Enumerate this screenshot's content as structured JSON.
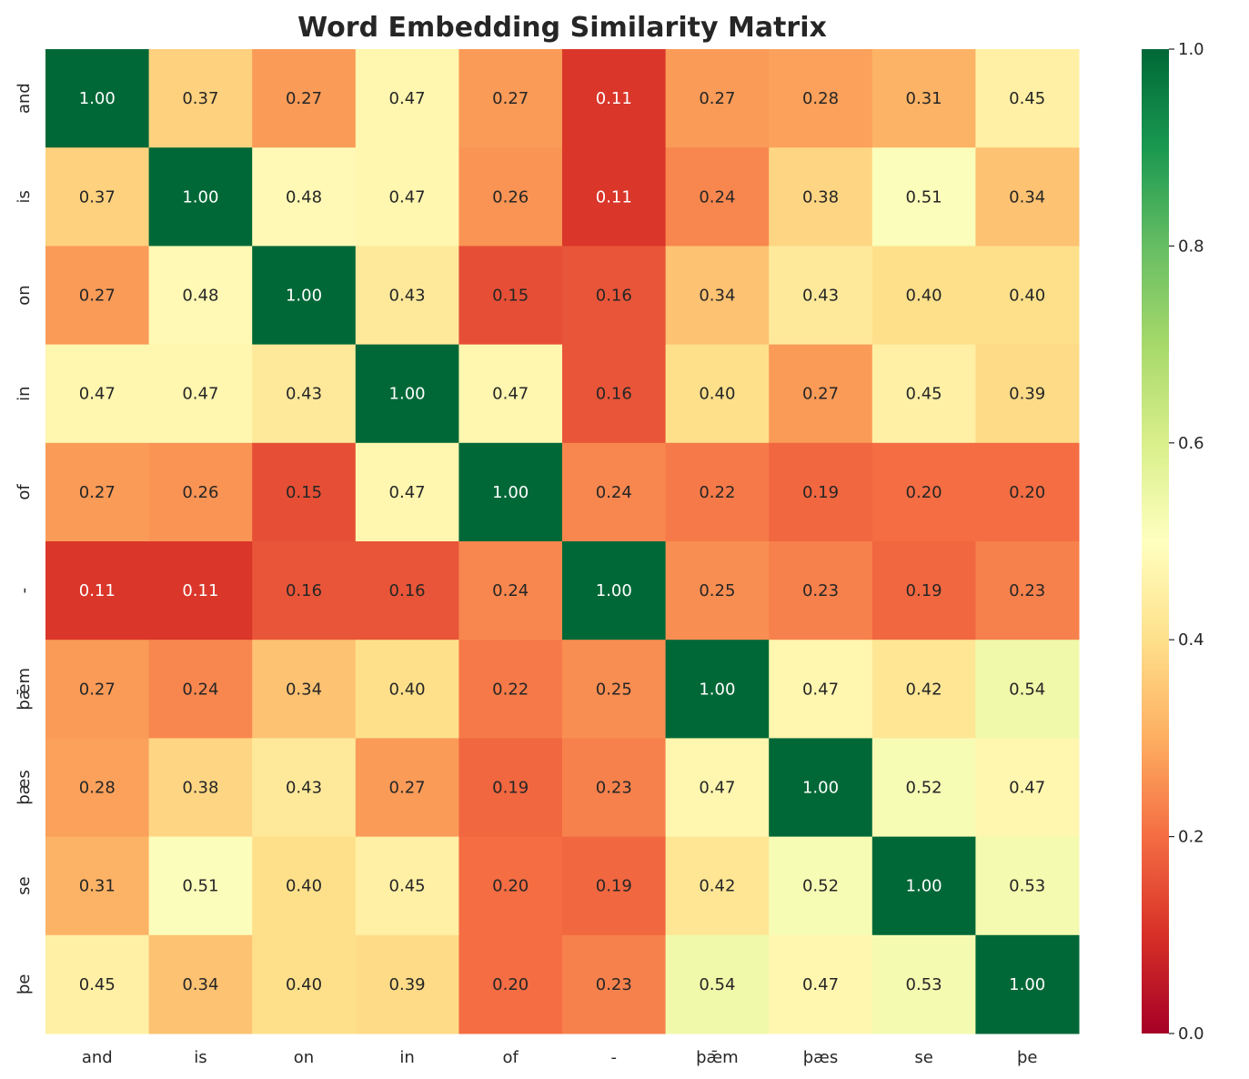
{
  "chart_data": {
    "type": "heatmap",
    "title": "Word Embedding Similarity Matrix",
    "colormap": "RdYlGn",
    "vmin": 0,
    "vmax": 1,
    "x_labels": [
      "and",
      "is",
      "on",
      "in",
      "of",
      "-",
      "þǣm",
      "þæs",
      "se",
      "þe"
    ],
    "y_labels": [
      "and",
      "is",
      "on",
      "in",
      "of",
      "-",
      "þǣm",
      "þæs",
      "se",
      "þe"
    ],
    "values": [
      [
        1.0,
        0.37,
        0.27,
        0.47,
        0.27,
        0.11,
        0.27,
        0.28,
        0.31,
        0.45
      ],
      [
        0.37,
        1.0,
        0.48,
        0.47,
        0.26,
        0.11,
        0.24,
        0.38,
        0.51,
        0.34
      ],
      [
        0.27,
        0.48,
        1.0,
        0.43,
        0.15,
        0.16,
        0.34,
        0.43,
        0.4,
        0.4
      ],
      [
        0.47,
        0.47,
        0.43,
        1.0,
        0.47,
        0.16,
        0.4,
        0.27,
        0.45,
        0.39
      ],
      [
        0.27,
        0.26,
        0.15,
        0.47,
        1.0,
        0.24,
        0.22,
        0.19,
        0.2,
        0.2
      ],
      [
        0.11,
        0.11,
        0.16,
        0.16,
        0.24,
        1.0,
        0.25,
        0.23,
        0.19,
        0.23
      ],
      [
        0.27,
        0.24,
        0.34,
        0.4,
        0.22,
        0.25,
        1.0,
        0.47,
        0.42,
        0.54
      ],
      [
        0.28,
        0.38,
        0.43,
        0.27,
        0.19,
        0.23,
        0.47,
        1.0,
        0.52,
        0.47
      ],
      [
        0.31,
        0.51,
        0.4,
        0.45,
        0.2,
        0.19,
        0.42,
        0.52,
        1.0,
        0.53
      ],
      [
        0.45,
        0.34,
        0.4,
        0.39,
        0.2,
        0.23,
        0.54,
        0.47,
        0.53,
        1.0
      ]
    ],
    "colorbar_ticks": [
      "0.0",
      "0.2",
      "0.4",
      "0.6",
      "0.8",
      "1.0"
    ],
    "annotation_format": "0.00"
  }
}
